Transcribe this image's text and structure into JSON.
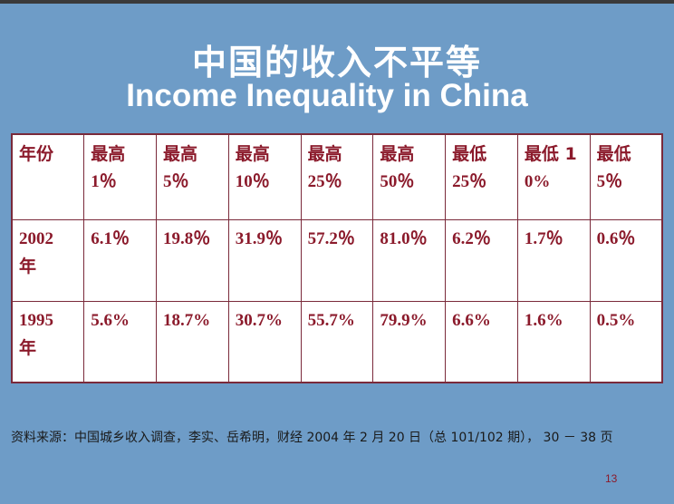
{
  "slide": {
    "title_cn": "中国的收入不平等",
    "title_en": "Income Inequality in China",
    "source": "资料来源：中国城乡收入调查，李实、岳希明，财经 2004 年 2 月 20 日（总 101/102 期）， 30 － 38 页",
    "page_number": "13"
  },
  "table": {
    "headers": [
      [
        "年份",
        ""
      ],
      [
        "最高",
        "1％"
      ],
      [
        "最高",
        "5％"
      ],
      [
        "最高",
        "10％"
      ],
      [
        "最高",
        "25％"
      ],
      [
        "最高",
        "50％"
      ],
      [
        "最低",
        "25％"
      ],
      [
        "最低 1",
        "0%"
      ],
      [
        "最低",
        "5％"
      ]
    ],
    "rows": [
      {
        "year": [
          "2002",
          "年"
        ],
        "values": [
          "6.1％",
          "19.8％",
          "31.9％",
          "57.2％",
          "81.0％",
          "6.2％",
          "1.7％",
          "0.6％"
        ]
      },
      {
        "year": [
          "1995",
          "年"
        ],
        "values": [
          "5.6%",
          "18.7%",
          "30.7%",
          "55.7%",
          "79.9%",
          "6.6%",
          "1.6%",
          "0.5%"
        ]
      }
    ]
  },
  "colors": {
    "background": "#6e9cc7",
    "table_text": "#8b1a2b",
    "table_border": "#7a2a3a",
    "title_text": "#ffffff"
  }
}
